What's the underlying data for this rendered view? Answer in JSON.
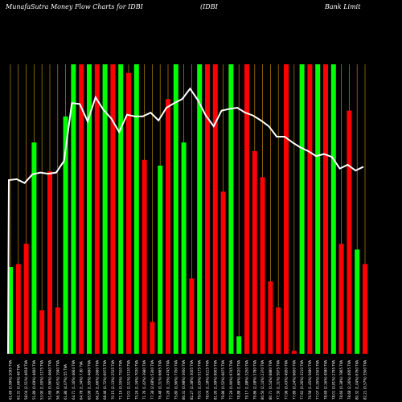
{
  "header": {
    "left": "MunafaSutra  Money Flow  Charts for IDBI",
    "mid": "(IDBI",
    "right": "Bank Limit"
  },
  "colors": {
    "background": "#000000",
    "up": "#00ff00",
    "down": "#ff0000",
    "grid": "#b8860b",
    "line": "#ffffff",
    "label": "#ffffff"
  },
  "chart_data": {
    "type": "bar",
    "title": "MunafaSutra  Money Flow  Charts for IDBI (IDBI Bank Limit",
    "categories": [
      "61.69 (0.99%) 2095 TVA",
      "62.31 (0.66%) 48 TVA",
      "58.04 (2.51%) 4658 TVA",
      "51.89 (0.69%) 4660 TVA",
      "53.90 (1.00%) 3175 TVA",
      "51.69 (0.96%) 4640 TVA",
      "56.36 (0.61%) 1940 TVA",
      "61.86 (4.07%) 55 TVA",
      "64.71 (1.16%) 4664 TVA",
      "64.78 (1.34%) 7.80 TVA",
      "65.99 (1.95%) 4660 TVA",
      "66.24 (1.66%) 2660 TVA",
      "68.46 (0.72%) 6975 TVA",
      "70.15 (2.13%) 2535 TVA",
      "71.19 (0.55%) 7520 TVA",
      "73.01 (2.51%) 5130 TVA",
      "75.24 (1.34%) 7030 TVA",
      "71.76 (1.42%) 3980 TVA",
      "77.38 (2.68%) 5300 TVA",
      "76.48 (0.31%) 6665 TVA",
      "73.28 (1.15%) 4745 TVA",
      "75.80 (0.96%) 7700 TVA",
      "80.31 (0.98%) 3950 TVA",
      "82.27 (2.38%) 3005 TVA",
      "79.01 (2.65%) 5175 TVA",
      "78.04 (1.18%) 9215 TVA",
      "81.95 (1.99%) 9905 TVA",
      "79.86 (0.52%) 6675 TVA",
      "77.29 (0.90%) 9745 TVA",
      "78.88 (1.66%) 8020 TVA",
      "79.17 (1.88%) 3250 TVA",
      "79.86 (2.08%) 3780 TVA",
      "80.50 (2.14%) 2370 TVA",
      "80.71 (0.54%) 8880 TVA",
      "77.30 (1.31%) 5975 TVA",
      "77.96 (0.43%) 4950 TVA",
      "77.89 (0.24%) 6600 TVA",
      "77.62 (0.26%) 3210 TVA",
      "76.58 (1.45%) 5680 TVA",
      "77.07 (0.35%) 2505 TVA",
      "78.69 (2.16%) 4580 TVA",
      "78.01 (0.81%) 2795 TVA",
      "78.66 (0.38%) 7865 TVA",
      "78.68 (2.26%) 4955 TVA",
      "80.32 (1.04%) 6760 TVA",
      "82.21 (0.57%) 3500 TVA"
    ],
    "series": [
      {
        "values": [
          30,
          31,
          38,
          73,
          15,
          63,
          16,
          82,
          100,
          100,
          100,
          100,
          100,
          100,
          100,
          97,
          100,
          67,
          11,
          65,
          88,
          100,
          73,
          26,
          100,
          100,
          100,
          56,
          100,
          6,
          100,
          70,
          61,
          25,
          16,
          100,
          1,
          100,
          100,
          100,
          100,
          100,
          38,
          84,
          36,
          31
        ],
        "direction": [
          "up",
          "down",
          "down",
          "up",
          "down",
          "down",
          "down",
          "up",
          "up",
          "down",
          "up",
          "down",
          "up",
          "down",
          "up",
          "down",
          "up",
          "down",
          "down",
          "up",
          "down",
          "up",
          "up",
          "down",
          "up",
          "down",
          "down",
          "down",
          "up",
          "up",
          "down",
          "down",
          "down",
          "down",
          "down",
          "down",
          "down",
          "up",
          "down",
          "up",
          "down",
          "up",
          "down",
          "down",
          "up",
          "down"
        ]
      }
    ],
    "price_line": [
      60.0,
      60.3,
      59.0,
      62.0,
      62.6,
      62.2,
      62.6,
      66.6,
      86.6,
      86.3,
      80.3,
      88.6,
      84.3,
      81.3,
      76.6,
      82.6,
      82.0,
      82.0,
      83.3,
      80.6,
      85.0,
      86.6,
      88.0,
      91.6,
      87.6,
      82.3,
      78.6,
      84.0,
      84.6,
      85.0,
      83.3,
      82.3,
      80.6,
      78.6,
      75.0,
      75.0,
      73.0,
      71.3,
      70.0,
      68.3,
      69.0,
      68.0,
      64.0,
      65.3,
      63.3,
      64.6
    ],
    "ylim": [
      0,
      100
    ],
    "grid": true,
    "legend": "none"
  }
}
